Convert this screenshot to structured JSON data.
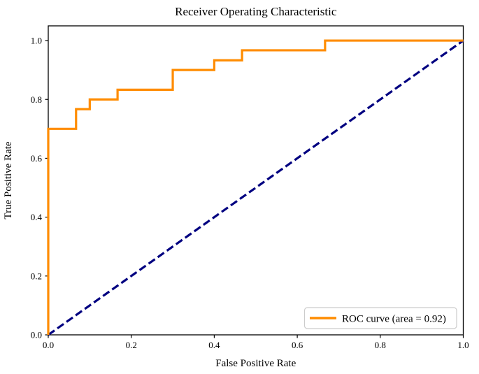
{
  "chart_data": {
    "type": "line",
    "title": "Receiver Operating Characteristic",
    "xlabel": "False Positive Rate",
    "ylabel": "True Positive Rate",
    "xlim": [
      0.0,
      1.0
    ],
    "ylim": [
      0.0,
      1.05
    ],
    "grid": false,
    "xticks": {
      "values": [
        0.0,
        0.2,
        0.4,
        0.6,
        0.8,
        1.0
      ],
      "labels": [
        "0.0",
        "0.2",
        "0.4",
        "0.6",
        "0.8",
        "1.0"
      ]
    },
    "yticks": {
      "values": [
        0.0,
        0.2,
        0.4,
        0.6,
        0.8,
        1.0
      ],
      "labels": [
        "0.0",
        "0.2",
        "0.4",
        "0.6",
        "0.8",
        "1.0"
      ]
    },
    "auc": 0.92,
    "legend": {
      "position": "lower right",
      "label": "ROC curve (area = 0.92)",
      "swatch_color": "#ff8c00",
      "border_color": "#cccccc",
      "background_color": "#ffffff"
    },
    "series": [
      {
        "name": "roc-curve",
        "label": "ROC curve (area = 0.92)",
        "color": "#ff8c00",
        "line_style": "solid",
        "line_width": 3.2,
        "points": [
          [
            0.0,
            0.0
          ],
          [
            0.0,
            0.7
          ],
          [
            0.067,
            0.7
          ],
          [
            0.067,
            0.767
          ],
          [
            0.1,
            0.767
          ],
          [
            0.1,
            0.8
          ],
          [
            0.167,
            0.8
          ],
          [
            0.167,
            0.833
          ],
          [
            0.3,
            0.833
          ],
          [
            0.3,
            0.9
          ],
          [
            0.4,
            0.9
          ],
          [
            0.4,
            0.933
          ],
          [
            0.467,
            0.933
          ],
          [
            0.467,
            0.967
          ],
          [
            0.667,
            0.967
          ],
          [
            0.667,
            1.0
          ],
          [
            1.0,
            1.0
          ]
        ]
      },
      {
        "name": "chance-diagonal",
        "label": "",
        "color": "#000080",
        "line_style": "dashed",
        "line_width": 3.2,
        "dash": [
          11,
          5
        ],
        "points": [
          [
            0.0,
            0.0
          ],
          [
            1.0,
            1.0
          ]
        ]
      }
    ],
    "colors": {
      "axis": "#000000",
      "text": "#000000"
    }
  }
}
